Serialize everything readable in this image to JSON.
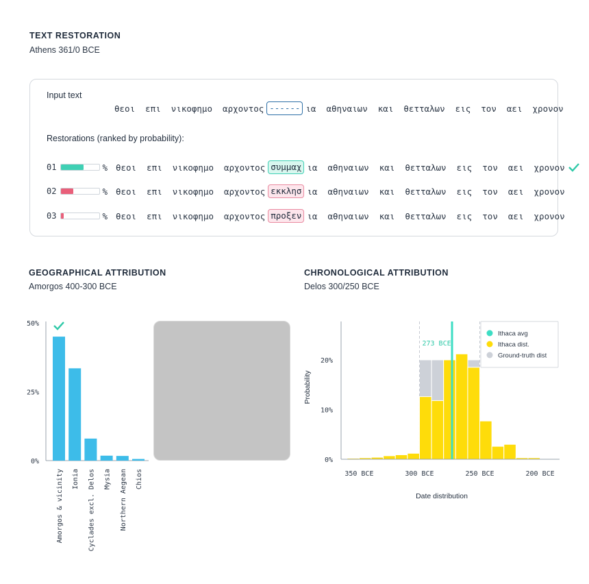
{
  "restoration": {
    "title": "TEXT RESTORATION",
    "subtitle": "Athens 361/0 BCE",
    "input_label": "Input text",
    "before": "θεοι  επι  νικοφημο  αρχοντος",
    "after": "ια  αθηναιων  και  θετταλων  εις  τον  αει  χρονον",
    "blank": "------",
    "ranked_label": "Restorations (ranked by probability):",
    "percent_sign": "%",
    "items": [
      {
        "rank": "01",
        "probability": 0.58,
        "gap": "συμμαχ",
        "correct": true
      },
      {
        "rank": "02",
        "probability": 0.32,
        "gap": "εκκλησ",
        "correct": false
      },
      {
        "rank": "03",
        "probability": 0.06,
        "gap": "προξεν",
        "correct": false
      }
    ],
    "colors": {
      "top": "#3fd0b4",
      "other": "#e95f7a",
      "blank": "#2d6fa6",
      "check": "#2fc9a8"
    },
    "check_icon": "check-icon"
  },
  "geo": {
    "title": "GEOGRAPHICAL ATTRIBUTION",
    "subtitle": "Amorgos 400-300 BCE"
  },
  "chrono": {
    "title": "CHRONOLOGICAL ATTRIBUTION",
    "subtitle": "Delos 300/250 BCE"
  },
  "chart_data": [
    {
      "type": "bar",
      "categories": [
        "Amorgos & vicinity",
        "Ionia",
        "Cyclades excl. Delos",
        "Mysia",
        "Northern Aegean",
        "Chios"
      ],
      "values": [
        45.0,
        33.5,
        8.0,
        1.8,
        1.7,
        0.6
      ],
      "ylim": [
        0,
        50
      ],
      "yticks": [
        0,
        25,
        50
      ],
      "ytick_labels": [
        "0%",
        "25%",
        "50%"
      ],
      "bar_color": "#3dbce9",
      "marked_category": "Amorgos & vicinity",
      "grid": false
    },
    {
      "type": "bar",
      "ylabel": "Probability",
      "xlabel": "Date distribution",
      "xlim": [
        -365,
        -185
      ],
      "ylim": [
        0,
        24
      ],
      "xticks": [
        -350,
        -300,
        -250,
        -200
      ],
      "xtick_labels": [
        "350 BCE",
        "300 BCE",
        "250 BCE",
        "200 BCE"
      ],
      "yticks": [
        0,
        10,
        20
      ],
      "ytick_labels": [
        "0%",
        "10%",
        "20%"
      ],
      "bin_width": 10,
      "ground_truth": {
        "name": "Ground-truth dist",
        "start": -300,
        "end": -250,
        "value": 20.0,
        "color": "#cdd1d8"
      },
      "series": [
        {
          "name": "Ithaca dist.",
          "color": "#fedc0a",
          "x": [
            -355,
            -345,
            -335,
            -325,
            -315,
            -305,
            -295,
            -285,
            -275,
            -265,
            -255,
            -245,
            -235,
            -225,
            -215,
            -205,
            -195
          ],
          "values": [
            0.2,
            0.3,
            0.4,
            0.7,
            0.9,
            1.2,
            12.6,
            11.8,
            20.0,
            21.2,
            18.5,
            7.7,
            2.6,
            3.0,
            0.3,
            0.3,
            0.05
          ]
        }
      ],
      "avg": {
        "name": "Ithaca avg",
        "label": "273 BCE",
        "x": -273,
        "color": "#3dddc4"
      },
      "legend": "top-right",
      "legend_entries": [
        "Ithaca avg",
        "Ithaca dist.",
        "Ground-truth dist"
      ]
    }
  ]
}
